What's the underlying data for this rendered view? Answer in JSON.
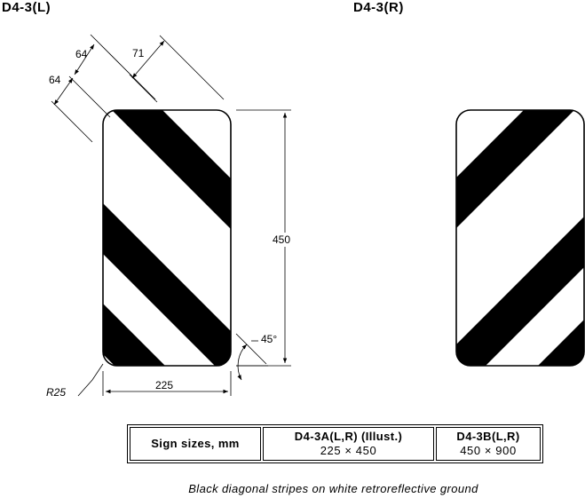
{
  "titles": {
    "left": "D4-3(L)",
    "right": "D4-3(R)"
  },
  "dimensions": {
    "stripe_width_top": "64",
    "stripe_width_left": "64",
    "stripe_spacing": "71",
    "height": "450",
    "width": "225",
    "corner_radius": "R25",
    "angle": "45°"
  },
  "colors": {
    "stripe": "#000000",
    "ground": "#ffffff"
  },
  "sizes_table": {
    "header": "Sign sizes, mm",
    "columns": [
      {
        "code": "D4-3A(L,R) (Illust.)",
        "size": "225 × 450"
      },
      {
        "code": "D4-3B(L,R)",
        "size": "450 × 900"
      }
    ]
  },
  "caption": "Black diagonal stripes on white retroreflective ground"
}
